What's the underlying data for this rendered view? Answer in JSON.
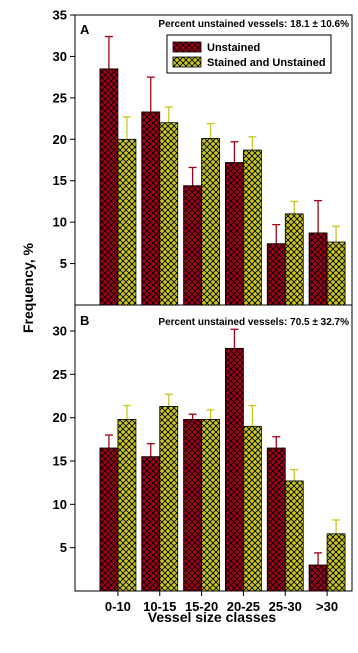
{
  "colors": {
    "unstained": "#a00018",
    "stained": "#c8c820",
    "err_unstained": "#a00018",
    "err_stained": "#c8c820"
  },
  "ylabel": "Frequency, %",
  "xlabel": "Vessel size classes",
  "chart_data": [
    {
      "type": "bar",
      "panel": "A",
      "annotation": "Percent unstained vessels: 18.1 ± 10.6%",
      "categories": [
        "0-10",
        "10-15",
        "15-20",
        "20-25",
        "25-30",
        ">30"
      ],
      "ylabel": "Frequency, %",
      "xlabel": "",
      "ylim": [
        0,
        35
      ],
      "yticks": [
        5,
        10,
        15,
        20,
        25,
        30,
        35
      ],
      "legend": "top-right",
      "series": [
        {
          "name": "Unstained",
          "values": [
            28.5,
            23.3,
            14.4,
            17.2,
            7.4,
            8.7
          ],
          "errors": [
            3.9,
            4.2,
            2.2,
            2.5,
            2.3,
            3.9
          ]
        },
        {
          "name": "Stained and Unstained",
          "values": [
            20.0,
            22.0,
            20.1,
            18.7,
            11.0,
            7.6
          ],
          "errors": [
            2.7,
            1.9,
            1.8,
            1.6,
            1.5,
            1.9
          ]
        }
      ]
    },
    {
      "type": "bar",
      "panel": "B",
      "annotation": "Percent unstained vessels: 70.5 ± 32.7%",
      "categories": [
        "0-10",
        "10-15",
        "15-20",
        "20-25",
        "25-30",
        ">30"
      ],
      "ylabel": "Frequency, %",
      "xlabel": "Vessel size classes",
      "ylim": [
        0,
        33
      ],
      "yticks": [
        5,
        10,
        15,
        20,
        25,
        30
      ],
      "series": [
        {
          "name": "Unstained",
          "values": [
            16.5,
            15.5,
            19.8,
            28.0,
            16.5,
            3.0
          ],
          "errors": [
            1.5,
            1.5,
            0.6,
            2.2,
            1.3,
            1.4
          ]
        },
        {
          "name": "Stained and Unstained",
          "values": [
            19.8,
            21.3,
            19.8,
            19.0,
            12.7,
            6.6
          ],
          "errors": [
            1.6,
            1.4,
            1.1,
            2.4,
            1.3,
            1.6
          ]
        }
      ]
    }
  ]
}
